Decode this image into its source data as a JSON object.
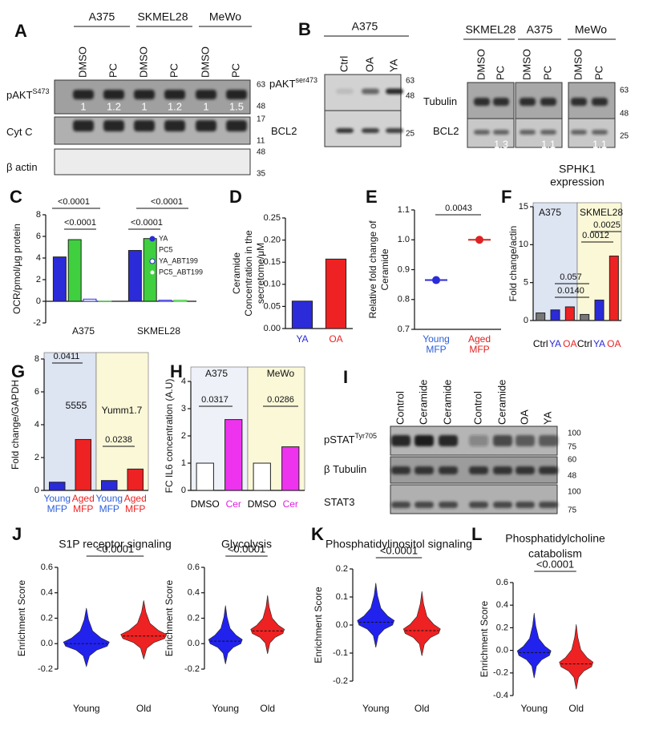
{
  "blots": [
    {
      "panel": "A",
      "groups": [
        "A375",
        "SKMEL28",
        "MeWo"
      ],
      "lanes": [
        "DMSO",
        "PC",
        "DMSO",
        "PC",
        "DMSO",
        "PC"
      ],
      "rows": [
        {
          "name": "pAKT",
          "sup": "S473",
          "markers": [
            63,
            48
          ],
          "quant": [
            1,
            1.2,
            1,
            1.2,
            1,
            1.5
          ]
        },
        {
          "name": "Cyt C",
          "markers": [
            17,
            11
          ]
        },
        {
          "name": "β actin",
          "markers": [
            48,
            35
          ]
        }
      ]
    },
    {
      "panel": "B",
      "groups": [
        "A375"
      ],
      "lanes": [
        "Ctrl",
        "OA",
        "YA"
      ],
      "rows": [
        {
          "name": "pAKT",
          "sup": "ser473",
          "markers": [
            63,
            48
          ]
        },
        {
          "name": "BCL2",
          "markers": [
            25
          ]
        }
      ]
    },
    {
      "groups": [
        "SKMEL28",
        "A375",
        "MeWo"
      ],
      "lanes": [
        "DMSO",
        "PC",
        "DMSO",
        "PC",
        "DMSO",
        "PC"
      ],
      "rows": [
        {
          "name": "Tubulin",
          "markers": [
            63,
            48
          ]
        },
        {
          "name": "BCL2",
          "markers": [
            25
          ],
          "quant": [
            null,
            1.3,
            null,
            1.1,
            null,
            1.1
          ]
        }
      ]
    },
    {
      "panel": "I",
      "lanes": [
        "Control",
        "Ceramide",
        "Ceramide",
        "Control",
        "Ceramide",
        "OA",
        "YA"
      ],
      "lane_colors": [
        "#000000",
        "#e020e0",
        "#e020e0",
        "#000000",
        "#e020e0",
        "#e02020",
        "#2b5fd9"
      ],
      "rows": [
        {
          "name": "pSTAT",
          "sup": "Tyr705",
          "markers": [
            100,
            75
          ]
        },
        {
          "name": "β Tubulin",
          "markers": [
            60,
            48
          ]
        },
        {
          "name": "STAT3",
          "markers": [
            100,
            75
          ]
        }
      ]
    }
  ],
  "chart_data": [
    {
      "panel": "C",
      "type": "bar",
      "ylabel": [
        "OCR/pmol/μg protein"
      ],
      "categories": [
        "A375",
        "SKMEL28"
      ],
      "series": [
        {
          "name": "YA",
          "color": "#2b2bd9",
          "values": [
            4.1,
            4.7
          ]
        },
        {
          "name": "PC5",
          "color": "#3fcf3f",
          "values": [
            5.7,
            5.8
          ]
        },
        {
          "name": "YA_ABT199",
          "color": "#2b2bd9",
          "hollow": true,
          "values": [
            0.2,
            0.1
          ]
        },
        {
          "name": "PC5_ABT199",
          "color": "#3fcf3f",
          "hollow": true,
          "values": [
            0.0,
            0.1
          ]
        }
      ],
      "ylim": [
        -2,
        8
      ],
      "yticks": [
        -2,
        0,
        2,
        4,
        6,
        8
      ],
      "annotations": [
        "<0.0001",
        "<0.0001",
        "<0.0001",
        "<0.0001"
      ]
    },
    {
      "panel": "D",
      "type": "bar",
      "ylabel": [
        "Ceramide",
        "Concentration in the",
        "secretome/μM"
      ],
      "categories": [
        "YA",
        "OA"
      ],
      "values": [
        0.062,
        0.157
      ],
      "colors": [
        "#2b2bd9",
        "#ee2222"
      ],
      "category_colors": [
        "#2b2bd9",
        "#ee2222"
      ],
      "ylim": [
        0,
        0.25
      ],
      "yticks": [
        {
          "value": 0,
          "label": "0.00"
        },
        {
          "value": 0.05,
          "label": "0.05"
        },
        {
          "value": 0.1,
          "label": "0.10"
        },
        {
          "value": 0.15,
          "label": "0.15"
        },
        {
          "value": 0.2,
          "label": "0.20"
        },
        {
          "value": 0.25,
          "label": "0.25"
        }
      ]
    },
    {
      "panel": "E",
      "type": "dot",
      "ylabel": [
        "Relative fold change of",
        "Ceramide"
      ],
      "categories": [
        [
          "Young",
          "MFP"
        ],
        [
          "Aged",
          "MFP"
        ]
      ],
      "values": [
        0.865,
        1.0
      ],
      "colors": [
        "#2b2bd9",
        "#dd2222"
      ],
      "category_colors": [
        "#2b5fd9",
        "#dd2222"
      ],
      "ylim": [
        0.7,
        1.1
      ],
      "yticks": [
        0.7,
        0.8,
        0.9,
        {
          "value": 1.0,
          "label": "1.0"
        },
        1.1
      ],
      "annotations": [
        "0.0043"
      ]
    },
    {
      "panel": "F",
      "type": "bar",
      "title": [
        "SPHK1",
        "expression"
      ],
      "ylabel": [
        "Fold change/actin"
      ],
      "categories": [
        "Ctrl",
        "YA",
        "OA",
        "Ctrl",
        "YA",
        "OA"
      ],
      "category_colors": [
        "#000000",
        "#2b2bd9",
        "#ee2222",
        "#000000",
        "#2b2bd9",
        "#ee2222"
      ],
      "values": [
        1.0,
        1.4,
        1.8,
        0.8,
        2.7,
        8.5
      ],
      "colors": [
        "#777777",
        "#2b2bd9",
        "#ee2222",
        "#777777",
        "#2b2bd9",
        "#ee2222"
      ],
      "groups": [
        "A375",
        "SKMEL28"
      ],
      "group_colors": [
        "#dde4f2",
        "#fbf8d8"
      ],
      "ylim": [
        0,
        15
      ],
      "yticks": [
        0,
        5,
        10,
        15
      ],
      "annotations": [
        "0.0140",
        "0.057",
        "0.0012",
        "0.0025"
      ]
    },
    {
      "panel": "G",
      "type": "bar",
      "ylabel": [
        "Fold change/GAPDH"
      ],
      "categories": [
        [
          "Young",
          "MFP"
        ],
        [
          "Aged",
          "MFP"
        ],
        [
          "Young",
          "MFP"
        ],
        [
          "Aged",
          "MFP"
        ]
      ],
      "category_colors": [
        "#2b5fd9",
        "#ee2222",
        "#2b5fd9",
        "#ee2222"
      ],
      "values": [
        0.5,
        3.1,
        0.6,
        1.3
      ],
      "colors": [
        "#2b2bd9",
        "#ee2222",
        "#2b2bd9",
        "#ee2222"
      ],
      "groups": [
        "5555",
        "Yumm1.7"
      ],
      "group_colors": [
        "#dde4f2",
        "#fbf8d8"
      ],
      "ylim": [
        0,
        8
      ],
      "yticks": [
        0,
        2,
        4,
        6,
        8
      ],
      "annotations": [
        "0.0411",
        "0.0238"
      ]
    },
    {
      "panel": "H",
      "type": "bar",
      "ylabel": [
        "FC IL6 concentration (A.U)"
      ],
      "categories": [
        "DMSO",
        "Cer",
        "DMSO",
        "Cer"
      ],
      "category_colors": [
        "#000000",
        "#e020e0",
        "#000000",
        "#e020e0"
      ],
      "values": [
        1.0,
        2.6,
        1.0,
        1.6
      ],
      "colors": [
        "#ffffff",
        "#ee33ee",
        "#ffffff",
        "#ee33ee"
      ],
      "groups": [
        "A375",
        "MeWo"
      ],
      "group_colors": [
        "#eef1f8",
        "#fbf8d8"
      ],
      "ylim": [
        0,
        4
      ],
      "yticks": [
        0,
        1,
        2,
        3,
        4
      ],
      "annotations": [
        "0.0317",
        "0.0286"
      ]
    },
    {
      "panel": "J",
      "type": "violin",
      "title": [
        "S1P receptor signaling"
      ],
      "ylabel": [
        "Enrichment Score"
      ],
      "categories": [
        "Young",
        "Old"
      ],
      "values": [
        0.0,
        0.06
      ],
      "colors": [
        "#2222ee",
        "#ee2222"
      ],
      "ylim": [
        -0.2,
        0.6
      ],
      "yticks": [
        -0.2,
        {
          "value": 0,
          "label": "0.0"
        },
        0.2,
        0.4,
        0.6
      ],
      "annotations": [
        "<0.0001"
      ]
    },
    {
      "type": "violin",
      "title": [
        "Glycolysis"
      ],
      "ylabel": [
        "Enrichment Score"
      ],
      "categories": [
        "Young",
        "Old"
      ],
      "values": [
        0.02,
        0.1
      ],
      "colors": [
        "#2222ee",
        "#ee2222"
      ],
      "ylim": [
        -0.2,
        0.6
      ],
      "yticks": [
        -0.2,
        {
          "value": 0,
          "label": "0.0"
        },
        0.2,
        0.4,
        0.6
      ],
      "annotations": [
        "<0.0001"
      ]
    },
    {
      "panel": "K",
      "type": "violin",
      "title": [
        "Phosphatidylinositol signaling"
      ],
      "ylabel": [
        "Enrichment Score"
      ],
      "categories": [
        "Young",
        "Old"
      ],
      "values": [
        0.01,
        -0.02
      ],
      "colors": [
        "#2222ee",
        "#ee2222"
      ],
      "ylim": [
        -0.2,
        0.2
      ],
      "yticks": [
        -0.2,
        -0.1,
        {
          "value": 0,
          "label": "0.0"
        },
        0.1,
        0.2
      ],
      "annotations": [
        "<0.0001"
      ]
    },
    {
      "panel": "L",
      "type": "violin",
      "title": [
        "Phosphatidylcholine",
        "catabolism"
      ],
      "ylabel": [
        "Enrichment Score"
      ],
      "categories": [
        "Young",
        "Old"
      ],
      "values": [
        -0.02,
        -0.12
      ],
      "colors": [
        "#2222ee",
        "#ee2222"
      ],
      "ylim": [
        -0.4,
        0.6
      ],
      "yticks": [
        -0.4,
        -0.2,
        {
          "value": 0,
          "label": "0.0"
        },
        0.2,
        0.4,
        0.6
      ],
      "annotations": [
        "<0.0001"
      ]
    }
  ]
}
